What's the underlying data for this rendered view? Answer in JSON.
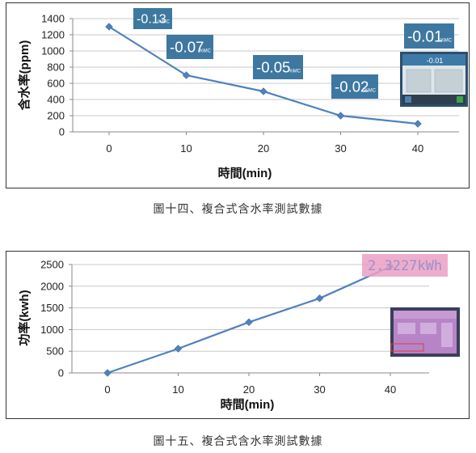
{
  "captions": {
    "figure14": "圖十四、複合式含水率測試數據",
    "figure15": "圖十五、複合式含水率測試數據"
  },
  "colors": {
    "line": "#4f81bd",
    "grid": "#c8c8c8",
    "annotation_bg": "#2e6d98",
    "annotation_bg_light": "#5b8bb3",
    "power_label_bg": "#eaa0c4"
  },
  "chart_data": [
    {
      "type": "line",
      "x": [
        0,
        10,
        20,
        30,
        40
      ],
      "series": [
        {
          "values": [
            1300,
            700,
            500,
            200,
            100
          ]
        }
      ],
      "xlabel": "時間(min)",
      "ylabel": "含水率(ppm)",
      "xticks": [
        "0",
        "10",
        "20",
        "30",
        "40"
      ],
      "yticks": [
        "0",
        "200",
        "400",
        "600",
        "800",
        "1000",
        "1200",
        "1400"
      ],
      "ylim": [
        0,
        1400
      ],
      "grid": true,
      "marker": "diamond",
      "annotations": [
        {
          "main": "-0.13",
          "unit": "%MC"
        },
        {
          "main": "-0.07",
          "unit": "%MC"
        },
        {
          "main": "-0.05",
          "unit": "%MC"
        },
        {
          "main": "-0.02",
          "unit": "%MC"
        },
        {
          "main": "-0.01",
          "unit": "%MC"
        }
      ],
      "inset_photo_text": "-0.01"
    },
    {
      "type": "line",
      "x": [
        0,
        10,
        20,
        30,
        40
      ],
      "series": [
        {
          "values": [
            0,
            560,
            1170,
            1720,
            2450
          ]
        }
      ],
      "xlabel": "時間(min)",
      "ylabel": "功率(kwh)",
      "xticks": [
        "0",
        "10",
        "20",
        "30",
        "40"
      ],
      "yticks": [
        "0",
        "500",
        "1000",
        "1500",
        "2000",
        "2500"
      ],
      "ylim": [
        0,
        2500
      ],
      "grid": true,
      "marker": "diamond",
      "annotations": [
        {
          "main": "2.3227kWh",
          "unit": ""
        }
      ]
    }
  ]
}
